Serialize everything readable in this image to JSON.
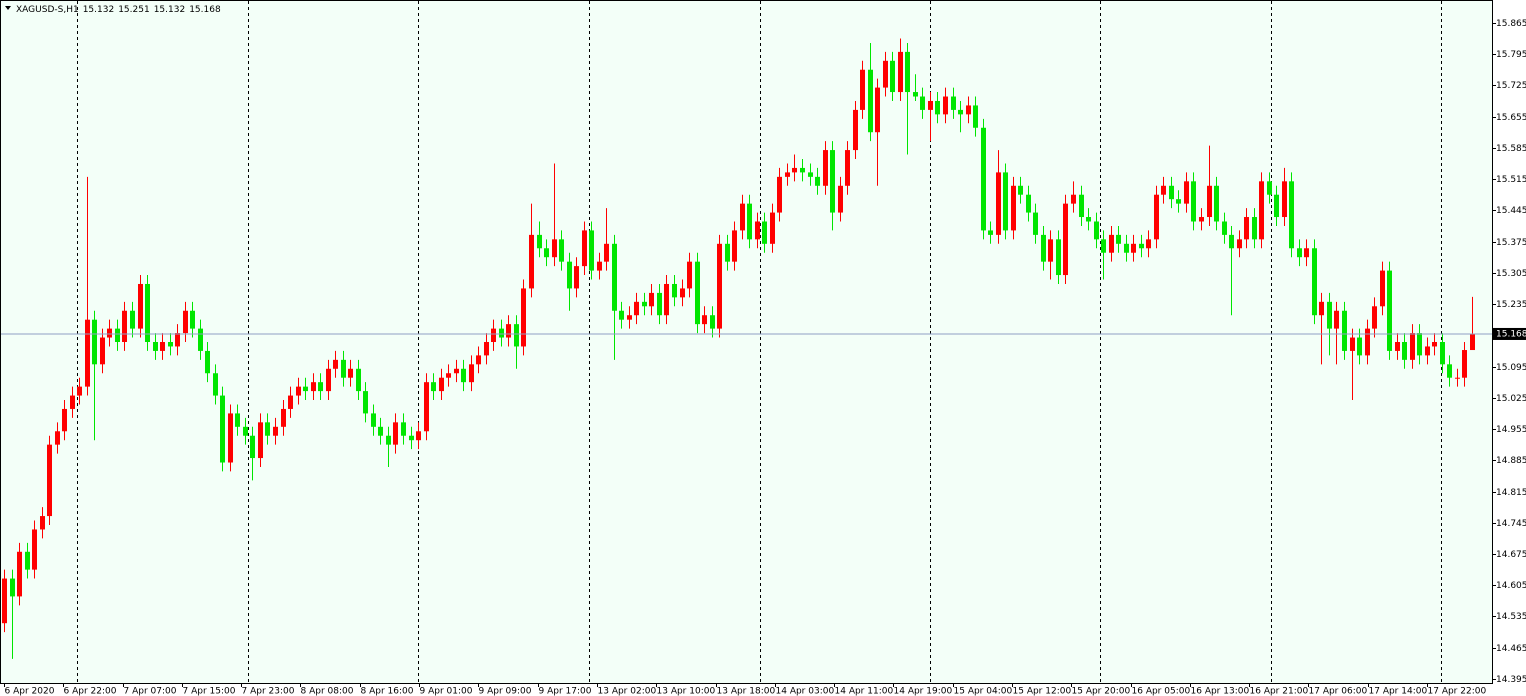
{
  "chart_data": {
    "type": "candlestick",
    "title": "XAGUSD-S,H1",
    "categories": [
      "6 Apr 2020",
      null,
      null,
      null,
      null,
      null,
      null,
      null,
      "6 Apr 22:00",
      null,
      null,
      null,
      null,
      null,
      null,
      null,
      "7 Apr 07:00",
      null,
      null,
      null,
      null,
      null,
      null,
      null,
      "7 Apr 15:00",
      null,
      null,
      null,
      null,
      null,
      null,
      null,
      "7 Apr 23:00",
      null,
      null,
      null,
      null,
      null,
      null,
      null,
      "8 Apr 08:00",
      null,
      null,
      null,
      null,
      null,
      null,
      null,
      "8 Apr 16:00",
      null,
      null,
      null,
      null,
      null,
      null,
      null,
      "9 Apr 01:00",
      null,
      null,
      null,
      null,
      null,
      null,
      null,
      "9 Apr 09:00",
      null,
      null,
      null,
      null,
      null,
      null,
      null,
      "9 Apr 17:00",
      null,
      null,
      null,
      null,
      null,
      null,
      null,
      "13 Apr 02:00",
      null,
      null,
      null,
      null,
      null,
      null,
      null,
      "13 Apr 10:00",
      null,
      null,
      null,
      null,
      null,
      null,
      null,
      "13 Apr 18:00",
      null,
      null,
      null,
      null,
      null,
      null,
      null,
      "14 Apr 03:00",
      null,
      null,
      null,
      null,
      null,
      null,
      null,
      "14 Apr 11:00",
      null,
      null,
      null,
      null,
      null,
      null,
      null,
      "14 Apr 19:00",
      null,
      null,
      null,
      null,
      null,
      null,
      null,
      "15 Apr 04:00",
      null,
      null,
      null,
      null,
      null,
      null,
      null,
      "15 Apr 12:00",
      null,
      null,
      null,
      null,
      null,
      null,
      null,
      "15 Apr 20:00",
      null,
      null,
      null,
      null,
      null,
      null,
      null,
      "16 Apr 05:00",
      null,
      null,
      null,
      null,
      null,
      null,
      null,
      "16 Apr 13:00",
      null,
      null,
      null,
      null,
      null,
      null,
      null,
      "16 Apr 21:00",
      null,
      null,
      null,
      null,
      null,
      null,
      null,
      "17 Apr 06:00",
      null,
      null,
      null,
      null,
      null,
      null,
      null,
      "17 Apr 14:00",
      null,
      null,
      null,
      null,
      null,
      null,
      null,
      "17 Apr 22:00",
      null,
      null,
      null
    ],
    "open": [
      14.52,
      14.62,
      14.58,
      14.68,
      14.64,
      14.73,
      14.76,
      14.92,
      14.95,
      15.0,
      15.03,
      15.05,
      15.2,
      15.1,
      15.16,
      15.18,
      15.15,
      15.22,
      15.18,
      15.28,
      15.15,
      15.13,
      15.15,
      15.14,
      15.17,
      15.22,
      15.18,
      15.13,
      15.08,
      15.03,
      14.88,
      14.99,
      14.96,
      14.94,
      14.89,
      14.97,
      14.94,
      14.96,
      15.0,
      15.03,
      15.05,
      15.04,
      15.06,
      15.04,
      15.09,
      15.11,
      15.07,
      15.09,
      15.04,
      14.99,
      14.96,
      14.94,
      14.92,
      14.97,
      14.94,
      14.93,
      14.95,
      15.06,
      15.04,
      15.07,
      15.08,
      15.09,
      15.06,
      15.1,
      15.12,
      15.15,
      15.18,
      15.16,
      15.19,
      15.14,
      15.27,
      15.39,
      15.36,
      15.34,
      15.38,
      15.33,
      15.27,
      15.32,
      15.4,
      15.31,
      15.33,
      15.37,
      15.22,
      15.2,
      15.21,
      15.24,
      15.23,
      15.26,
      15.21,
      15.28,
      15.25,
      15.27,
      15.33,
      15.19,
      15.21,
      15.18,
      15.37,
      15.33,
      15.4,
      15.46,
      15.38,
      15.42,
      15.37,
      15.44,
      15.52,
      15.53,
      15.54,
      15.53,
      15.52,
      15.5,
      15.58,
      15.44,
      15.5,
      15.58,
      15.67,
      15.76,
      15.62,
      15.72,
      15.78,
      15.71,
      15.8,
      15.71,
      15.7,
      15.67,
      15.69,
      15.66,
      15.7,
      15.67,
      15.66,
      15.68,
      15.63,
      15.4,
      15.39,
      15.53,
      15.4,
      15.5,
      15.48,
      15.44,
      15.39,
      15.33,
      15.38,
      15.3,
      15.46,
      15.48,
      15.43,
      15.42,
      15.38,
      15.35,
      15.39,
      15.37,
      15.35,
      15.37,
      15.36,
      15.38,
      15.48,
      15.5,
      15.47,
      15.46,
      15.51,
      15.42,
      15.43,
      15.5,
      15.42,
      15.39,
      15.36,
      15.38,
      15.43,
      15.38,
      15.51,
      15.48,
      15.43,
      15.51,
      15.36,
      15.34,
      15.36,
      15.21,
      15.24,
      15.18,
      15.22,
      15.13,
      15.16,
      15.12,
      15.18,
      15.23,
      15.31,
      15.13,
      15.15,
      15.11,
      15.17,
      15.12,
      15.14,
      15.15,
      15.1,
      15.07,
      15.07,
      15.132
    ],
    "high": [
      14.64,
      14.64,
      14.7,
      14.7,
      14.75,
      14.78,
      14.94,
      14.97,
      15.02,
      15.05,
      15.07,
      15.52,
      15.22,
      15.18,
      15.2,
      15.2,
      15.24,
      15.24,
      15.3,
      15.3,
      15.17,
      15.17,
      15.17,
      15.19,
      15.24,
      15.24,
      15.2,
      15.15,
      15.1,
      15.05,
      15.01,
      15.01,
      14.98,
      14.96,
      14.99,
      14.99,
      14.98,
      15.02,
      15.05,
      15.07,
      15.07,
      15.08,
      15.08,
      15.11,
      15.13,
      15.13,
      15.11,
      15.11,
      15.06,
      15.01,
      14.98,
      14.96,
      14.99,
      14.99,
      14.96,
      14.97,
      15.08,
      15.08,
      15.09,
      15.1,
      15.11,
      15.11,
      15.12,
      15.14,
      15.17,
      15.2,
      15.2,
      15.21,
      15.21,
      15.29,
      15.46,
      15.42,
      15.38,
      15.55,
      15.4,
      15.35,
      15.34,
      15.42,
      15.42,
      15.35,
      15.45,
      15.39,
      15.24,
      15.23,
      15.26,
      15.26,
      15.28,
      15.28,
      15.3,
      15.3,
      15.29,
      15.35,
      15.35,
      15.23,
      15.23,
      15.39,
      15.39,
      15.42,
      15.48,
      15.48,
      15.44,
      15.44,
      15.46,
      15.54,
      15.55,
      15.57,
      15.56,
      15.55,
      15.54,
      15.6,
      15.6,
      15.52,
      15.6,
      15.69,
      15.78,
      15.82,
      15.74,
      15.8,
      15.8,
      15.83,
      15.82,
      15.75,
      15.72,
      15.71,
      15.71,
      15.72,
      15.72,
      15.69,
      15.7,
      15.7,
      15.65,
      15.42,
      15.58,
      15.55,
      15.52,
      15.52,
      15.5,
      15.46,
      15.41,
      15.4,
      15.4,
      15.48,
      15.51,
      15.5,
      15.45,
      15.44,
      15.4,
      15.41,
      15.41,
      15.39,
      15.39,
      15.39,
      15.4,
      15.5,
      15.52,
      15.52,
      15.49,
      15.53,
      15.53,
      15.45,
      15.59,
      15.52,
      15.44,
      15.41,
      15.4,
      15.45,
      15.45,
      15.53,
      15.53,
      15.5,
      15.54,
      15.53,
      15.38,
      15.38,
      15.38,
      15.26,
      15.26,
      15.24,
      15.24,
      15.18,
      15.18,
      15.2,
      15.25,
      15.33,
      15.33,
      15.17,
      15.17,
      15.19,
      15.19,
      15.16,
      15.17,
      15.17,
      15.12,
      15.09,
      15.15,
      15.251
    ],
    "low": [
      14.5,
      14.44,
      14.56,
      14.62,
      14.62,
      14.71,
      14.74,
      14.9,
      14.93,
      14.98,
      15.01,
      15.03,
      14.93,
      15.08,
      15.14,
      15.13,
      15.13,
      15.16,
      15.16,
      15.13,
      15.11,
      15.11,
      15.12,
      15.12,
      15.15,
      15.16,
      15.11,
      15.06,
      15.01,
      14.86,
      14.86,
      14.94,
      14.92,
      14.84,
      14.87,
      14.92,
      14.92,
      14.94,
      14.98,
      15.01,
      15.02,
      15.02,
      15.02,
      15.02,
      15.07,
      15.05,
      15.05,
      15.02,
      14.97,
      14.94,
      14.92,
      14.87,
      14.9,
      14.92,
      14.91,
      14.91,
      14.93,
      15.02,
      15.02,
      15.05,
      15.06,
      15.04,
      15.04,
      15.08,
      15.1,
      15.13,
      15.14,
      15.14,
      15.09,
      15.12,
      15.25,
      15.34,
      15.32,
      15.32,
      15.31,
      15.22,
      15.25,
      15.3,
      15.29,
      15.29,
      15.31,
      15.11,
      15.18,
      15.18,
      15.19,
      15.21,
      15.21,
      15.19,
      15.19,
      15.23,
      15.23,
      15.25,
      15.17,
      15.17,
      15.16,
      15.16,
      15.31,
      15.31,
      15.38,
      15.36,
      15.36,
      15.35,
      15.35,
      15.42,
      15.5,
      15.51,
      15.51,
      15.5,
      15.48,
      15.48,
      15.4,
      15.42,
      15.48,
      15.56,
      15.65,
      15.6,
      15.5,
      15.7,
      15.69,
      15.69,
      15.57,
      15.69,
      15.65,
      15.6,
      15.64,
      15.64,
      15.65,
      15.62,
      15.64,
      15.61,
      15.38,
      15.37,
      15.37,
      15.38,
      15.38,
      15.46,
      15.42,
      15.37,
      15.31,
      15.29,
      15.28,
      15.28,
      15.44,
      15.41,
      15.4,
      15.36,
      15.29,
      15.33,
      15.35,
      15.33,
      15.33,
      15.34,
      15.34,
      15.36,
      15.46,
      15.45,
      15.44,
      15.44,
      15.4,
      15.4,
      15.41,
      15.4,
      15.37,
      15.21,
      15.34,
      15.36,
      15.36,
      15.36,
      15.46,
      15.41,
      15.41,
      15.34,
      15.32,
      15.32,
      15.19,
      15.1,
      15.12,
      15.1,
      15.11,
      15.02,
      15.1,
      15.1,
      15.16,
      15.21,
      15.11,
      15.11,
      15.09,
      15.09,
      15.1,
      15.1,
      15.12,
      15.08,
      15.05,
      15.05,
      15.05,
      15.132
    ],
    "close": [
      14.62,
      14.58,
      14.68,
      14.64,
      14.73,
      14.76,
      14.92,
      14.95,
      15.0,
      15.03,
      15.05,
      15.2,
      15.1,
      15.16,
      15.18,
      15.15,
      15.22,
      15.18,
      15.28,
      15.15,
      15.13,
      15.15,
      15.14,
      15.17,
      15.22,
      15.18,
      15.13,
      15.08,
      15.03,
      14.88,
      14.99,
      14.96,
      14.94,
      14.89,
      14.97,
      14.94,
      14.96,
      15.0,
      15.03,
      15.05,
      15.04,
      15.06,
      15.04,
      15.09,
      15.11,
      15.07,
      15.09,
      15.04,
      14.99,
      14.96,
      14.94,
      14.92,
      14.97,
      14.94,
      14.93,
      14.95,
      15.06,
      15.04,
      15.07,
      15.08,
      15.09,
      15.06,
      15.1,
      15.12,
      15.15,
      15.18,
      15.16,
      15.19,
      15.14,
      15.27,
      15.39,
      15.36,
      15.34,
      15.38,
      15.33,
      15.27,
      15.32,
      15.4,
      15.31,
      15.33,
      15.37,
      15.22,
      15.2,
      15.21,
      15.24,
      15.23,
      15.26,
      15.21,
      15.28,
      15.25,
      15.27,
      15.33,
      15.19,
      15.21,
      15.18,
      15.37,
      15.33,
      15.4,
      15.46,
      15.38,
      15.42,
      15.37,
      15.44,
      15.52,
      15.53,
      15.54,
      15.53,
      15.52,
      15.5,
      15.58,
      15.44,
      15.5,
      15.58,
      15.67,
      15.76,
      15.62,
      15.72,
      15.78,
      15.71,
      15.8,
      15.71,
      15.7,
      15.67,
      15.69,
      15.66,
      15.7,
      15.67,
      15.66,
      15.68,
      15.63,
      15.4,
      15.39,
      15.53,
      15.4,
      15.5,
      15.48,
      15.44,
      15.39,
      15.33,
      15.38,
      15.3,
      15.46,
      15.48,
      15.43,
      15.42,
      15.38,
      15.35,
      15.39,
      15.37,
      15.35,
      15.37,
      15.36,
      15.38,
      15.48,
      15.5,
      15.47,
      15.46,
      15.51,
      15.42,
      15.43,
      15.5,
      15.42,
      15.39,
      15.36,
      15.38,
      15.43,
      15.38,
      15.51,
      15.48,
      15.43,
      15.51,
      15.36,
      15.34,
      15.36,
      15.21,
      15.24,
      15.18,
      15.22,
      15.13,
      15.16,
      15.12,
      15.18,
      15.23,
      15.31,
      15.13,
      15.15,
      15.11,
      15.17,
      15.12,
      15.14,
      15.15,
      15.1,
      15.07,
      15.07,
      15.132,
      15.168
    ],
    "up_color": "#ff0000",
    "down_color": "#00e600",
    "current_price": 15.168,
    "current_price_color": "#8f9fc4",
    "ylim": [
      14.386,
      15.914
    ],
    "yticks": [
      15.865,
      15.795,
      15.725,
      15.655,
      15.585,
      15.515,
      15.445,
      15.375,
      15.305,
      15.235,
      15.095,
      15.025,
      14.955,
      14.885,
      14.815,
      14.745,
      14.675,
      14.605,
      14.535,
      14.465,
      14.395
    ],
    "grid": false
  }
}
